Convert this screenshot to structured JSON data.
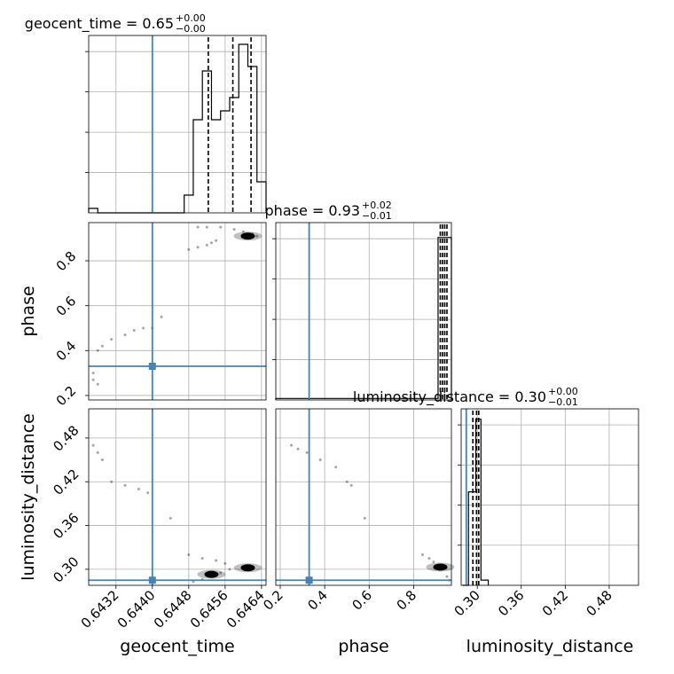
{
  "chart_data": [
    {
      "type": "histogram",
      "parameter": "geocent_time",
      "title_name": "geocent_time = 0.65",
      "title_sup": "+0.00",
      "title_sub": "−0.00",
      "xlim": [
        0.6426,
        0.6465
      ],
      "bins": [
        {
          "x0": 0.6426,
          "x1": 0.6428,
          "h": 1
        },
        {
          "x0": 0.6428,
          "x1": 0.6447,
          "h": 0
        },
        {
          "x0": 0.6447,
          "x1": 0.6449,
          "h": 4
        },
        {
          "x0": 0.6449,
          "x1": 0.6451,
          "h": 21
        },
        {
          "x0": 0.6451,
          "x1": 0.6453,
          "h": 32
        },
        {
          "x0": 0.6453,
          "x1": 0.6455,
          "h": 21
        },
        {
          "x0": 0.6455,
          "x1": 0.6457,
          "h": 23
        },
        {
          "x0": 0.6457,
          "x1": 0.6459,
          "h": 26
        },
        {
          "x0": 0.6459,
          "x1": 0.6461,
          "h": 38
        },
        {
          "x0": 0.6461,
          "x1": 0.6463,
          "h": 33
        },
        {
          "x0": 0.6463,
          "x1": 0.6465,
          "h": 7
        }
      ],
      "ymax": 40,
      "quantiles": [
        0.64523,
        0.64577,
        0.64617
      ],
      "truth": 0.644
    },
    {
      "type": "histogram",
      "parameter": "phase",
      "title_name": "phase = 0.93",
      "title_sup": "+0.02",
      "title_sub": "−0.01",
      "xlim": [
        0.18,
        0.97
      ],
      "bins": [
        {
          "x0": 0.18,
          "x1": 0.91,
          "h": 0.4
        },
        {
          "x0": 0.91,
          "x1": 0.97,
          "h": 44
        }
      ],
      "ymax": 48,
      "quantiles": [
        0.92,
        0.93,
        0.94,
        0.95
      ],
      "truth": 0.33
    },
    {
      "type": "histogram",
      "parameter": "luminosity_distance",
      "title_name": "luminosity_distance = 0.30",
      "title_sup": "+0.00",
      "title_sub": "−0.01",
      "xlim": [
        0.278,
        0.52
      ],
      "bins": [
        {
          "x0": 0.28,
          "x1": 0.288,
          "h": 0
        },
        {
          "x0": 0.288,
          "x1": 0.298,
          "h": 18
        },
        {
          "x0": 0.298,
          "x1": 0.305,
          "h": 32
        },
        {
          "x0": 0.305,
          "x1": 0.315,
          "h": 1
        }
      ],
      "ymax": 34,
      "quantiles": [
        0.294,
        0.299,
        0.302
      ],
      "truth": 0.285
    },
    {
      "type": "scatter",
      "parameters": [
        "geocent_time",
        "phase"
      ],
      "xlim": [
        0.6426,
        0.6465
      ],
      "ylim": [
        0.18,
        0.97
      ],
      "truth": [
        0.644,
        0.33
      ],
      "points": [
        [
          0.6427,
          0.27
        ],
        [
          0.6427,
          0.3
        ],
        [
          0.6428,
          0.25
        ],
        [
          0.6428,
          0.4
        ],
        [
          0.6429,
          0.42
        ],
        [
          0.6431,
          0.45
        ],
        [
          0.6434,
          0.47
        ],
        [
          0.6436,
          0.49
        ],
        [
          0.6438,
          0.5
        ],
        [
          0.644,
          0.5
        ],
        [
          0.6442,
          0.55
        ],
        [
          0.6448,
          0.85
        ],
        [
          0.645,
          0.86
        ],
        [
          0.6452,
          0.87
        ],
        [
          0.6453,
          0.88
        ],
        [
          0.6454,
          0.89
        ],
        [
          0.645,
          0.95
        ],
        [
          0.6452,
          0.95
        ],
        [
          0.6455,
          0.95
        ],
        [
          0.6458,
          0.94
        ],
        [
          0.646,
          0.93
        ],
        [
          0.6462,
          0.92
        ],
        [
          0.6463,
          0.91
        ]
      ],
      "core": [
        [
          0.6461,
          0.91
        ]
      ]
    },
    {
      "type": "scatter",
      "parameters": [
        "geocent_time",
        "luminosity_distance"
      ],
      "xlim": [
        0.6426,
        0.6465
      ],
      "ylim": [
        0.278,
        0.52
      ],
      "truth": [
        0.644,
        0.285
      ],
      "points": [
        [
          0.6427,
          0.47
        ],
        [
          0.6428,
          0.46
        ],
        [
          0.6429,
          0.45
        ],
        [
          0.6431,
          0.42
        ],
        [
          0.6434,
          0.415
        ],
        [
          0.6437,
          0.41
        ],
        [
          0.6439,
          0.405
        ],
        [
          0.6444,
          0.37
        ],
        [
          0.6448,
          0.32
        ],
        [
          0.6451,
          0.315
        ],
        [
          0.6454,
          0.312
        ],
        [
          0.6456,
          0.308
        ],
        [
          0.6449,
          0.283
        ],
        [
          0.6451,
          0.286
        ],
        [
          0.6453,
          0.29
        ],
        [
          0.6455,
          0.295
        ],
        [
          0.6457,
          0.3
        ]
      ],
      "core": [
        [
          0.6453,
          0.293
        ],
        [
          0.6461,
          0.302
        ]
      ]
    },
    {
      "type": "scatter",
      "parameters": [
        "phase",
        "luminosity_distance"
      ],
      "xlim": [
        0.18,
        0.97
      ],
      "ylim": [
        0.278,
        0.52
      ],
      "truth": [
        0.33,
        0.285
      ],
      "points": [
        [
          0.25,
          0.47
        ],
        [
          0.28,
          0.465
        ],
        [
          0.32,
          0.46
        ],
        [
          0.38,
          0.45
        ],
        [
          0.45,
          0.44
        ],
        [
          0.5,
          0.42
        ],
        [
          0.52,
          0.415
        ],
        [
          0.58,
          0.37
        ],
        [
          0.84,
          0.32
        ],
        [
          0.87,
          0.315
        ],
        [
          0.89,
          0.31
        ],
        [
          0.92,
          0.305
        ],
        [
          0.95,
          0.29
        ],
        [
          0.96,
          0.285
        ]
      ],
      "core": [
        [
          0.92,
          0.303
        ]
      ]
    }
  ],
  "axes": {
    "geocent_time": {
      "label": "geocent_time",
      "ticks": [
        0.6432,
        0.644,
        0.6448,
        0.6456,
        0.6464
      ],
      "tick_labels": [
        "0.6432",
        "0.6440",
        "0.6448",
        "0.6456",
        "0.6464"
      ]
    },
    "phase": {
      "label": "phase",
      "ticks": [
        0.2,
        0.4,
        0.6,
        0.8
      ],
      "tick_labels": [
        "0.2",
        "0.4",
        "0.6",
        "0.8"
      ]
    },
    "luminosity_distance": {
      "label": "luminosity_distance",
      "ticks": [
        0.3,
        0.36,
        0.42,
        0.48
      ],
      "tick_labels": [
        "0.30",
        "0.36",
        "0.42",
        "0.48"
      ]
    }
  },
  "colors": {
    "truth": "#4682b4",
    "histogram": "#000000",
    "grid": "#b0b0b0"
  }
}
